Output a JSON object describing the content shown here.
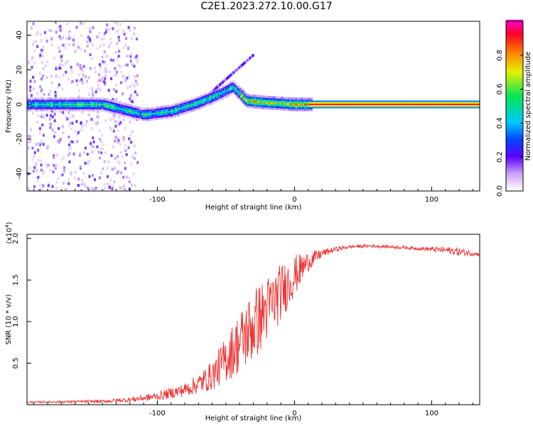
{
  "title": "C2E1.2023.272.10.00.G17",
  "chart_data": [
    {
      "type": "heatmap",
      "name": "spectrogram",
      "xlabel": "Height of straight line (km)",
      "ylabel": "Frequency (Hz)",
      "xlim": [
        -195,
        135
      ],
      "ylim": [
        -50,
        48
      ],
      "x_ticks": [
        -100,
        0,
        100
      ],
      "y_ticks": [
        -40,
        -20,
        0,
        20,
        40
      ],
      "colorbar": {
        "label": "Normalized spectral amplitude",
        "range": [
          0,
          1
        ],
        "ticks": [
          "0.0",
          "0.2",
          "0.4",
          "0.6",
          "0.8"
        ]
      },
      "ridge": {
        "description_points_x": [
          -195,
          -140,
          -110,
          -90,
          -70,
          -55,
          -45,
          -35,
          -20,
          0,
          10,
          135
        ],
        "description_points_freq": [
          0,
          0,
          -6,
          -4,
          1,
          6,
          10,
          2,
          1,
          0,
          0,
          0
        ]
      }
    },
    {
      "type": "line",
      "name": "snr",
      "xlabel": "Height of straight line (km)",
      "ylabel": "SNR (10 * v/v)",
      "ylabel_scale": "(x10",
      "ylabel_scale_exp": "4",
      "ylabel_scale_close": ")",
      "xlim": [
        -195,
        135
      ],
      "ylim": [
        0,
        2.05
      ],
      "x_ticks": [
        -100,
        0,
        100
      ],
      "y_ticks": [
        "0.5",
        "1.0",
        "1.5",
        "2.0"
      ],
      "series": [
        {
          "color": "#ee3333",
          "envelope_x": [
            -195,
            -140,
            -120,
            -100,
            -80,
            -70,
            -60,
            -50,
            -40,
            -30,
            -20,
            -10,
            0,
            10,
            20,
            30,
            40,
            55,
            70,
            90,
            110,
            120,
            135
          ],
          "envelope_y": [
            0.03,
            0.04,
            0.06,
            0.1,
            0.18,
            0.25,
            0.35,
            0.55,
            0.75,
            0.95,
            1.15,
            1.35,
            1.55,
            1.72,
            1.82,
            1.87,
            1.9,
            1.91,
            1.9,
            1.88,
            1.86,
            1.84,
            1.81
          ],
          "spread": [
            0.01,
            0.02,
            0.03,
            0.05,
            0.08,
            0.12,
            0.18,
            0.28,
            0.38,
            0.45,
            0.4,
            0.35,
            0.25,
            0.12,
            0.05,
            0.03,
            0.02,
            0.02,
            0.02,
            0.02,
            0.04,
            0.05,
            0.02
          ]
        }
      ]
    }
  ]
}
